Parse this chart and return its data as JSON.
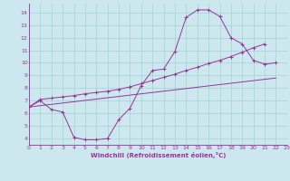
{
  "bg_color": "#cce8ee",
  "line_color": "#993399",
  "grid_color": "#99cccc",
  "xlabel": "Windchill (Refroidissement éolien,°C)",
  "xlim": [
    0,
    23
  ],
  "ylim": [
    3.5,
    14.7
  ],
  "xticks": [
    0,
    1,
    2,
    3,
    4,
    5,
    6,
    7,
    8,
    9,
    10,
    11,
    12,
    13,
    14,
    15,
    16,
    17,
    18,
    19,
    20,
    21,
    22,
    23
  ],
  "yticks": [
    4,
    5,
    6,
    7,
    8,
    9,
    10,
    11,
    12,
    13,
    14
  ],
  "curve1_x": [
    0,
    1,
    2,
    3,
    4,
    5,
    6,
    7,
    8,
    9,
    10,
    11,
    12,
    13,
    14,
    15,
    16,
    17,
    18,
    19,
    20,
    21,
    22
  ],
  "curve1_y": [
    6.5,
    7.0,
    6.3,
    6.1,
    4.1,
    3.9,
    3.9,
    4.0,
    5.5,
    6.4,
    8.2,
    9.4,
    9.5,
    10.9,
    13.6,
    14.2,
    14.2,
    13.7,
    12.0,
    11.5,
    10.2,
    9.9,
    10.0
  ],
  "curve2_x": [
    0,
    1,
    2,
    3,
    4,
    5,
    6,
    7,
    8,
    9,
    10,
    11,
    12,
    13,
    14,
    15,
    16,
    17,
    18,
    19,
    20,
    21,
    22
  ],
  "curve2_y": [
    6.5,
    7.1,
    7.2,
    7.3,
    7.4,
    7.55,
    7.65,
    7.75,
    7.9,
    8.1,
    8.35,
    8.6,
    8.85,
    9.1,
    9.4,
    9.65,
    9.95,
    10.2,
    10.5,
    10.85,
    11.2,
    11.5,
    10.0
  ],
  "line3_x": [
    0,
    22
  ],
  "line3_y": [
    6.5,
    8.8
  ]
}
